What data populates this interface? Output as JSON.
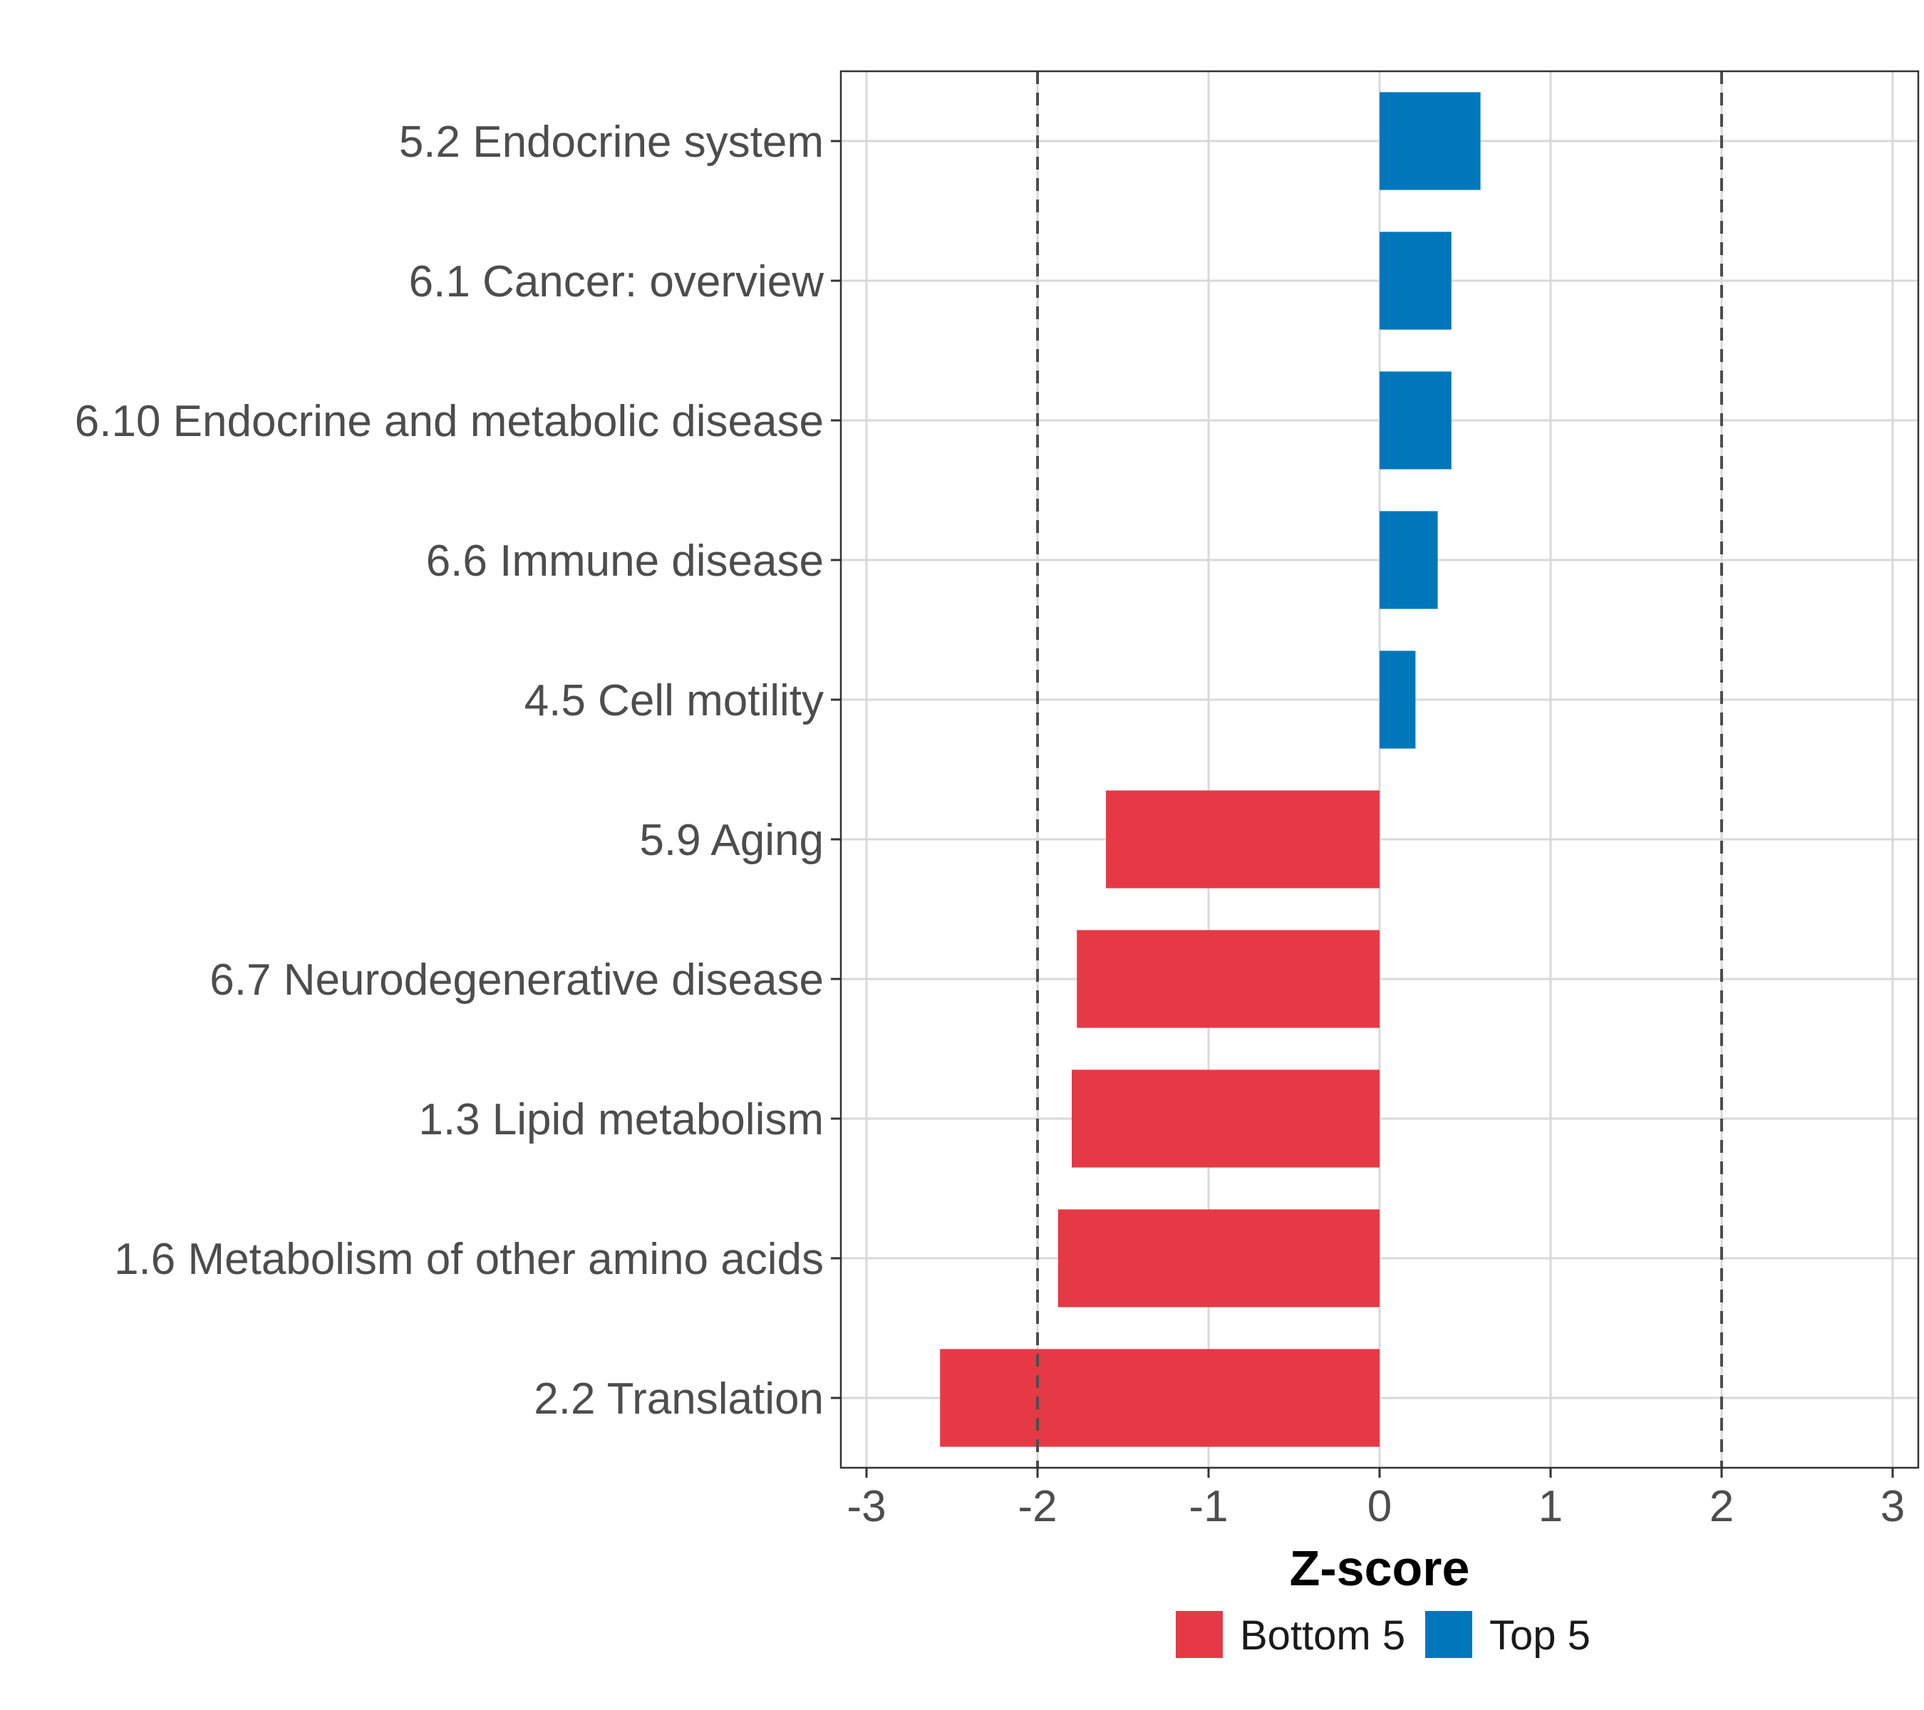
{
  "chart_data": {
    "type": "bar",
    "orientation": "horizontal",
    "categories": [
      "5.2 Endocrine system",
      "6.1 Cancer: overview",
      "6.10 Endocrine and metabolic disease",
      "6.6 Immune disease",
      "4.5 Cell motility",
      "5.9 Aging",
      "6.7 Neurodegenerative disease",
      "1.3 Lipid metabolism",
      "1.6 Metabolism of other amino acids",
      "2.2 Translation"
    ],
    "values": [
      0.59,
      0.42,
      0.42,
      0.34,
      0.21,
      -1.6,
      -1.77,
      -1.8,
      -1.88,
      -2.57
    ],
    "groups": [
      "Top 5",
      "Top 5",
      "Top 5",
      "Top 5",
      "Top 5",
      "Bottom 5",
      "Bottom 5",
      "Bottom 5",
      "Bottom 5",
      "Bottom 5"
    ],
    "xlabel": "Z-score",
    "ylabel": "",
    "xlim": [
      -3.15,
      3.15
    ],
    "xticks": [
      -3,
      -2,
      -1,
      0,
      1,
      2,
      3
    ],
    "xtick_labels": [
      "-3",
      "-2",
      "-1",
      "0",
      "1",
      "2",
      "3"
    ],
    "reference_lines": [
      -2,
      2
    ],
    "grid": true,
    "legend": {
      "position": "bottom",
      "entries": [
        {
          "label": "Bottom 5",
          "color": "#E63946"
        },
        {
          "label": "Top 5",
          "color": "#0077BB"
        }
      ]
    },
    "colors": {
      "Bottom 5": "#E63946",
      "Top 5": "#0077BB"
    }
  }
}
